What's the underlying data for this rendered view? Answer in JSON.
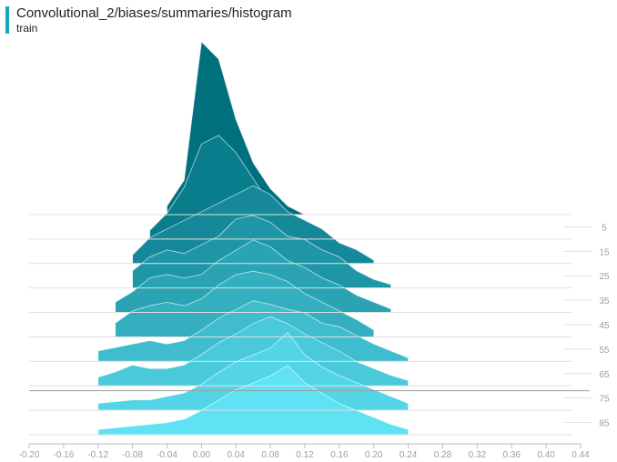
{
  "header": {
    "title": "Convolutional_2/biases/summaries/histogram",
    "run": "train",
    "accent_color": "#12a8bd"
  },
  "chart_data": {
    "type": "histogram-offset",
    "title": "Convolutional_2/biases/summaries/histogram",
    "run": "train",
    "x_ticks": [
      "-0.20",
      "-0.16",
      "-0.12",
      "-0.08",
      "-0.04",
      "0.00",
      "0.04",
      "0.08",
      "0.12",
      "0.16",
      "0.20",
      "0.24",
      "0.28",
      "0.32",
      "0.36",
      "0.40",
      "0.44"
    ],
    "xlim": [
      -0.2,
      0.44
    ],
    "y_ticks": [
      "5",
      "15",
      "25",
      "35",
      "45",
      "55",
      "65",
      "75",
      "85"
    ],
    "steps": [
      0,
      90
    ],
    "highlighted_step": 72,
    "color_old": "#00707f",
    "color_new": "#5ee2f4",
    "series": [
      {
        "step": 0,
        "x": [
          -0.04,
          -0.02,
          0.0,
          0.02,
          0.04,
          0.06,
          0.08,
          0.1,
          0.12
        ],
        "values": [
          0.05,
          0.2,
          1.0,
          0.9,
          0.55,
          0.3,
          0.15,
          0.05,
          0.0
        ]
      },
      {
        "step": 10,
        "x": [
          -0.06,
          -0.04,
          -0.02,
          0.0,
          0.02,
          0.04,
          0.06,
          0.08,
          0.1,
          0.12,
          0.14
        ],
        "values": [
          0.05,
          0.15,
          0.3,
          0.55,
          0.6,
          0.5,
          0.35,
          0.2,
          0.12,
          0.06,
          0.02
        ]
      },
      {
        "step": 20,
        "x": [
          -0.08,
          -0.06,
          -0.04,
          -0.02,
          0.0,
          0.02,
          0.04,
          0.06,
          0.08,
          0.1,
          0.12,
          0.14,
          0.16,
          0.18,
          0.2
        ],
        "values": [
          0.05,
          0.15,
          0.2,
          0.25,
          0.3,
          0.35,
          0.4,
          0.45,
          0.4,
          0.3,
          0.25,
          0.2,
          0.12,
          0.08,
          0.02
        ]
      },
      {
        "step": 30,
        "x": [
          -0.08,
          -0.06,
          -0.04,
          -0.02,
          0.0,
          0.02,
          0.04,
          0.06,
          0.08,
          0.1,
          0.12,
          0.14,
          0.16,
          0.18,
          0.2,
          0.22
        ],
        "values": [
          0.1,
          0.18,
          0.22,
          0.2,
          0.25,
          0.3,
          0.4,
          0.42,
          0.38,
          0.3,
          0.28,
          0.22,
          0.18,
          0.1,
          0.05,
          0.02
        ]
      },
      {
        "step": 40,
        "x": [
          -0.1,
          -0.08,
          -0.06,
          -0.04,
          -0.02,
          0.0,
          0.02,
          0.04,
          0.06,
          0.08,
          0.1,
          0.12,
          0.14,
          0.16,
          0.18,
          0.2,
          0.22
        ],
        "values": [
          0.06,
          0.12,
          0.2,
          0.22,
          0.2,
          0.22,
          0.3,
          0.36,
          0.42,
          0.38,
          0.3,
          0.26,
          0.2,
          0.16,
          0.1,
          0.06,
          0.02
        ]
      },
      {
        "step": 50,
        "x": [
          -0.1,
          -0.08,
          -0.06,
          -0.04,
          -0.02,
          0.0,
          0.02,
          0.04,
          0.06,
          0.08,
          0.1,
          0.12,
          0.14,
          0.16,
          0.18,
          0.2
        ],
        "values": [
          0.08,
          0.15,
          0.18,
          0.2,
          0.18,
          0.22,
          0.3,
          0.36,
          0.38,
          0.36,
          0.32,
          0.25,
          0.2,
          0.15,
          0.1,
          0.04
        ]
      },
      {
        "step": 60,
        "x": [
          -0.12,
          -0.1,
          -0.08,
          -0.06,
          -0.04,
          -0.02,
          0.0,
          0.02,
          0.04,
          0.06,
          0.08,
          0.1,
          0.12,
          0.14,
          0.16,
          0.18,
          0.2,
          0.22,
          0.24
        ],
        "values": [
          0.06,
          0.08,
          0.1,
          0.12,
          0.1,
          0.12,
          0.18,
          0.25,
          0.3,
          0.35,
          0.33,
          0.3,
          0.28,
          0.22,
          0.2,
          0.15,
          0.1,
          0.06,
          0.02
        ]
      },
      {
        "step": 70,
        "x": [
          -0.12,
          -0.1,
          -0.08,
          -0.06,
          -0.04,
          -0.02,
          0.0,
          0.02,
          0.04,
          0.06,
          0.08,
          0.1,
          0.12,
          0.14,
          0.16,
          0.18,
          0.2,
          0.22,
          0.24
        ],
        "values": [
          0.05,
          0.08,
          0.12,
          0.1,
          0.1,
          0.12,
          0.18,
          0.25,
          0.3,
          0.36,
          0.4,
          0.36,
          0.3,
          0.25,
          0.2,
          0.14,
          0.1,
          0.06,
          0.03
        ]
      },
      {
        "step": 80,
        "x": [
          -0.12,
          -0.1,
          -0.08,
          -0.06,
          -0.04,
          -0.02,
          0.0,
          0.02,
          0.04,
          0.06,
          0.08,
          0.1,
          0.12,
          0.14,
          0.16,
          0.18,
          0.2,
          0.22,
          0.24
        ],
        "values": [
          0.04,
          0.05,
          0.06,
          0.06,
          0.08,
          0.1,
          0.15,
          0.22,
          0.28,
          0.32,
          0.36,
          0.45,
          0.32,
          0.25,
          0.2,
          0.16,
          0.12,
          0.08,
          0.04
        ]
      },
      {
        "step": 90,
        "x": [
          -0.12,
          -0.1,
          -0.08,
          -0.06,
          -0.04,
          -0.02,
          0.0,
          0.02,
          0.04,
          0.06,
          0.08,
          0.1,
          0.12,
          0.14,
          0.16,
          0.18,
          0.2,
          0.22,
          0.24
        ],
        "values": [
          0.03,
          0.04,
          0.05,
          0.06,
          0.07,
          0.09,
          0.14,
          0.2,
          0.26,
          0.3,
          0.34,
          0.4,
          0.3,
          0.24,
          0.18,
          0.14,
          0.1,
          0.06,
          0.03
        ]
      }
    ]
  }
}
